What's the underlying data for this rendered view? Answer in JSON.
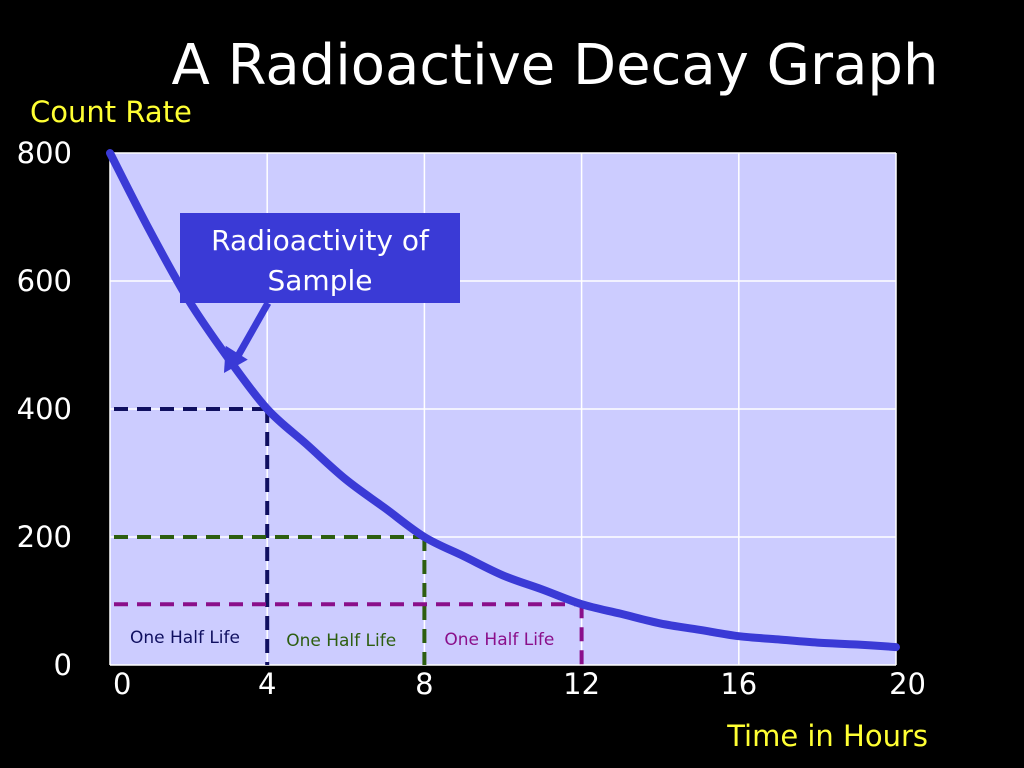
{
  "chart_data": {
    "type": "line",
    "title": "A Radioactive Decay Graph",
    "ylabel": "Count Rate",
    "xlabel": "Time in Hours",
    "xlim": [
      0,
      20
    ],
    "ylim": [
      0,
      800
    ],
    "x_ticks": [
      0,
      4,
      8,
      12,
      16,
      20
    ],
    "y_ticks": [
      0,
      200,
      400,
      600,
      800
    ],
    "grid": true,
    "series": [
      {
        "name": "Radioactivity of Sample",
        "color": "#3a3ad6",
        "x": [
          0,
          1,
          2,
          3,
          4,
          5,
          6,
          7,
          8,
          9,
          10,
          11,
          12,
          13,
          14,
          15,
          16,
          17,
          18,
          19,
          20
        ],
        "y": [
          800,
          680,
          570,
          480,
          400,
          345,
          290,
          245,
          200,
          170,
          140,
          118,
          95,
          80,
          65,
          55,
          45,
          40,
          35,
          32,
          28
        ]
      }
    ],
    "annotations": [
      {
        "text": "Radioactivity of",
        "text2": "Sample",
        "target_x": 2.9,
        "target_y": 500,
        "box_color": "#3a3ad6"
      }
    ],
    "half_life_markers": [
      {
        "label": "One Half Life",
        "x": 4,
        "y": 400,
        "x_start": 0,
        "color": "#101060"
      },
      {
        "label": "One Half Life",
        "x": 8,
        "y": 200,
        "x_start": 4,
        "color": "#2d5e10"
      },
      {
        "label": "One Half Life",
        "x": 12,
        "y": 95,
        "x_start": 8,
        "color": "#8a0f8a"
      }
    ],
    "plot_background": "#ccccff",
    "grid_color": "#ffffff"
  }
}
